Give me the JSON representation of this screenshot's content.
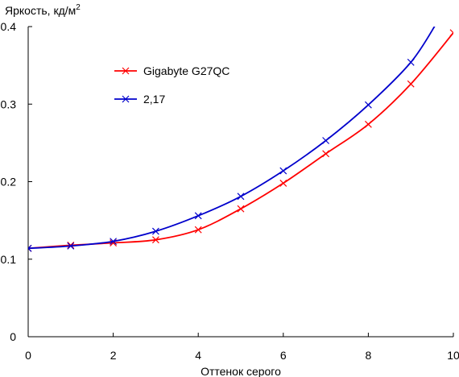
{
  "chart_data": {
    "type": "line",
    "xlabel": "Оттенок серого",
    "ylabel_text": "Яркость, кд/м",
    "ylabel_superscript": "2",
    "xlim": [
      0,
      10
    ],
    "ylim": [
      0,
      0.4
    ],
    "xticks": [
      0,
      2,
      4,
      6,
      8,
      10
    ],
    "xtick_labels": [
      "0",
      "2",
      "4",
      "6",
      "8",
      "10"
    ],
    "yticks": [
      0,
      0.1,
      0.2,
      0.3,
      0.4
    ],
    "ytick_labels": [
      "0",
      "0.1",
      "0.2",
      "0.3",
      "0.4"
    ],
    "grid": false,
    "legend_position": "upper-left",
    "series": [
      {
        "name": "Gigabyte G27QC",
        "color": "#ff0000",
        "marker": "x",
        "x": [
          0,
          1,
          2,
          3,
          4,
          5,
          6,
          7,
          8,
          9,
          10
        ],
        "y": [
          0.114,
          0.118,
          0.121,
          0.125,
          0.138,
          0.165,
          0.198,
          0.236,
          0.274,
          0.326,
          0.392
        ]
      },
      {
        "name": "2,17",
        "color": "#0000cc",
        "marker": "x",
        "x": [
          0,
          1,
          2,
          3,
          4,
          5,
          6,
          7,
          8,
          9,
          9.6
        ],
        "y": [
          0.114,
          0.117,
          0.123,
          0.136,
          0.156,
          0.181,
          0.214,
          0.253,
          0.299,
          0.354,
          0.404
        ]
      }
    ]
  }
}
